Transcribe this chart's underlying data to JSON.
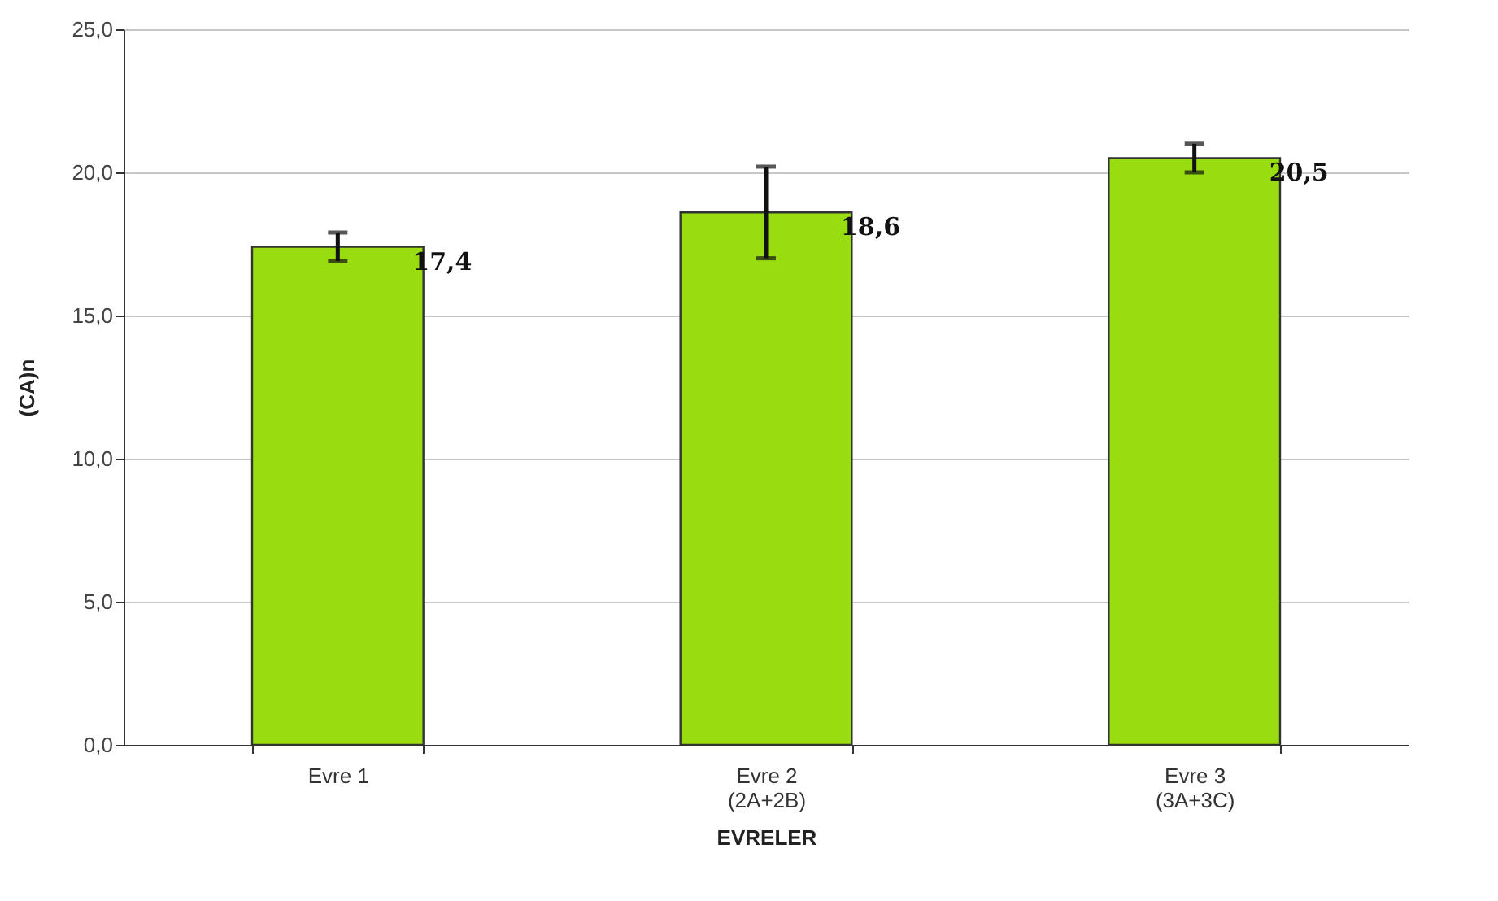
{
  "chart_data": {
    "type": "bar",
    "xlabel": "EVRELER",
    "ylabel": "(CA)n",
    "categories": [
      "Evre 1",
      "Evre 2\n(2A+2B)",
      "Evre 3\n(3A+3C)"
    ],
    "values": [
      17.4,
      18.6,
      20.5
    ],
    "color": "#99dd11",
    "errors": [
      0.5,
      1.6,
      0.5
    ],
    "value_labels": [
      "17,4",
      "18,6",
      "20,5"
    ],
    "ylim": [
      0,
      25
    ],
    "yticks": [
      {
        "value": 0,
        "label": "0,0"
      },
      {
        "value": 5,
        "label": "5,0"
      },
      {
        "value": 10,
        "label": "10,0"
      },
      {
        "value": 15,
        "label": "15,0"
      },
      {
        "value": 20,
        "label": "20,0"
      },
      {
        "value": 25,
        "label": "25,0"
      }
    ],
    "grid": "y"
  }
}
